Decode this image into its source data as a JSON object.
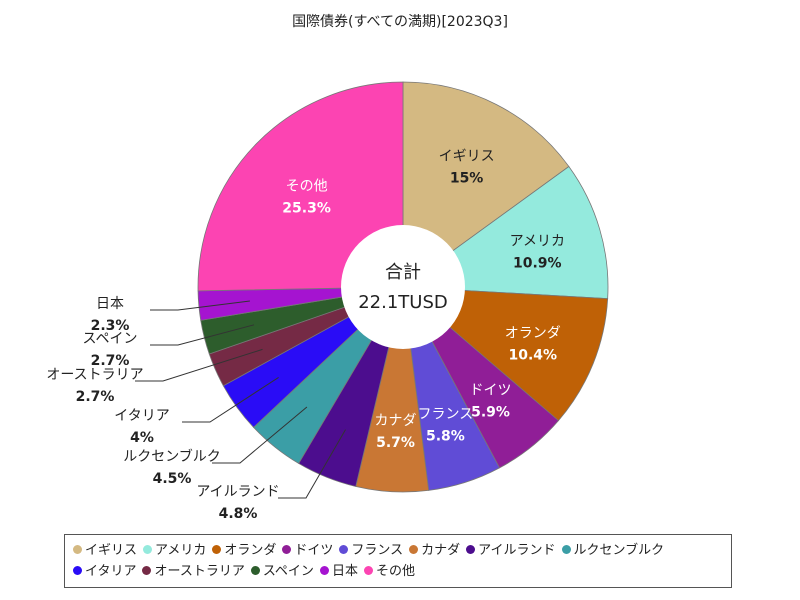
{
  "chart_data": {
    "type": "pie",
    "title": "国際債券(すべての満期)[2023Q3]",
    "center_label": "合計",
    "center_value": "22.1TUSD",
    "slices": [
      {
        "label": "イギリス",
        "pct_label": "15%",
        "value": 15.0,
        "color": "#d4b982"
      },
      {
        "label": "アメリカ",
        "pct_label": "10.9%",
        "value": 10.9,
        "color": "#94eadd"
      },
      {
        "label": "オランダ",
        "pct_label": "10.4%",
        "value": 10.4,
        "color": "#bf6106"
      },
      {
        "label": "ドイツ",
        "pct_label": "5.9%",
        "value": 5.9,
        "color": "#901e97"
      },
      {
        "label": "フランス",
        "pct_label": "5.8%",
        "value": 5.8,
        "color": "#604cd6"
      },
      {
        "label": "カナダ",
        "pct_label": "5.7%",
        "value": 5.7,
        "color": "#c97734"
      },
      {
        "label": "アイルランド",
        "pct_label": "4.8%",
        "value": 4.8,
        "color": "#4c0d8e"
      },
      {
        "label": "ルクセンブルク",
        "pct_label": "4.5%",
        "value": 4.5,
        "color": "#3b9ea6"
      },
      {
        "label": "イタリア",
        "pct_label": "4%",
        "value": 4.0,
        "color": "#2a0cf6"
      },
      {
        "label": "オーストラリア",
        "pct_label": "2.7%",
        "value": 2.7,
        "color": "#752a45"
      },
      {
        "label": "スペイン",
        "pct_label": "2.7%",
        "value": 2.7,
        "color": "#2d5d2c"
      },
      {
        "label": "日本",
        "pct_label": "2.3%",
        "value": 2.3,
        "color": "#a514d0"
      },
      {
        "label": "その他",
        "pct_label": "25.3%",
        "value": 25.3,
        "color": "#fc44b2"
      }
    ],
    "legend_position": "bottom"
  }
}
